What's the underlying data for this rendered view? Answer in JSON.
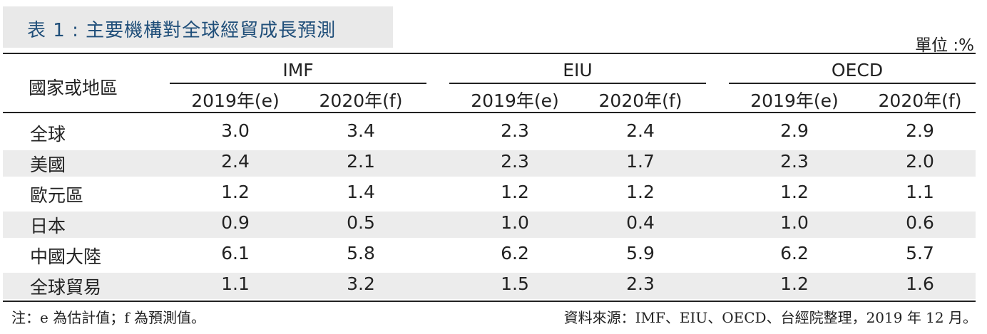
{
  "title": "表 1 : 主要機構對全球經貿成長預測",
  "unit": "單位 :%",
  "header": {
    "row_label": "國家或地區",
    "groups": [
      "IMF",
      "EIU",
      "OECD"
    ],
    "subcols": [
      "2019年(e)",
      "2020年(f)",
      "2019年(e)",
      "2020年(f)",
      "2019年(e)",
      "2020年(f)"
    ]
  },
  "rows": [
    {
      "label": "全球",
      "values": [
        "3.0",
        "3.4",
        "2.3",
        "2.4",
        "2.9",
        "2.9"
      ]
    },
    {
      "label": "美國",
      "values": [
        "2.4",
        "2.1",
        "2.3",
        "1.7",
        "2.3",
        "2.0"
      ]
    },
    {
      "label": "歐元區",
      "values": [
        "1.2",
        "1.4",
        "1.2",
        "1.2",
        "1.2",
        "1.1"
      ]
    },
    {
      "label": "日本",
      "values": [
        "0.9",
        "0.5",
        "1.0",
        "0.4",
        "1.0",
        "0.6"
      ]
    },
    {
      "label": "中國大陸",
      "values": [
        "6.1",
        "5.8",
        "6.2",
        "5.9",
        "6.2",
        "5.7"
      ]
    },
    {
      "label": "全球貿易",
      "values": [
        "1.1",
        "3.2",
        "1.5",
        "2.3",
        "1.2",
        "1.6"
      ]
    }
  ],
  "footer": {
    "note": "注：e 為估計值；f 為預測值。",
    "source": "資料來源：IMF、EIU、OECD、台經院整理，2019 年 12 月。"
  }
}
